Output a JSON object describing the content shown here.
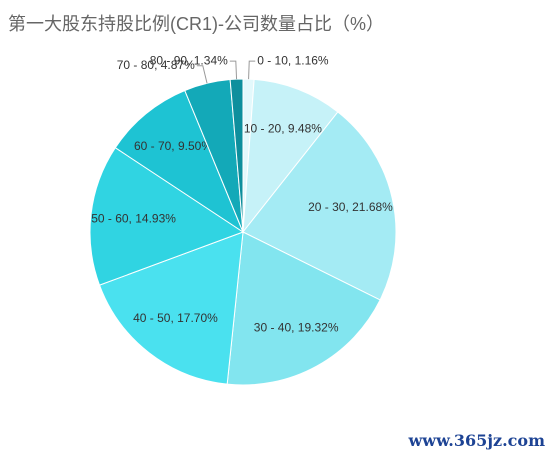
{
  "chart_data": {
    "type": "pie",
    "title": "第一大股东持股比例(CR1)-公司数量占比（%）",
    "values": [
      1.16,
      9.48,
      21.68,
      19.32,
      17.7,
      14.93,
      9.5,
      4.87,
      1.34
    ],
    "value_labels": [
      "0 - 10, 1.16%",
      "10 - 20, 9.48%",
      "20 - 30, 21.68%",
      "30 - 40, 19.32%",
      "40 - 50, 17.70%",
      "50 - 60, 14.93%",
      "60 - 70, 9.50%",
      "70 - 80, 4.87%",
      "80 - 90, 1.34%"
    ],
    "colors": [
      "#e3f9fc",
      "#c6f2f8",
      "#a4ebf4",
      "#82e5ef",
      "#4ae1ef",
      "#30d4e2",
      "#1ec3d3",
      "#13a9b8",
      "#0e8f9d"
    ],
    "watermark": "www.365jz.com"
  }
}
